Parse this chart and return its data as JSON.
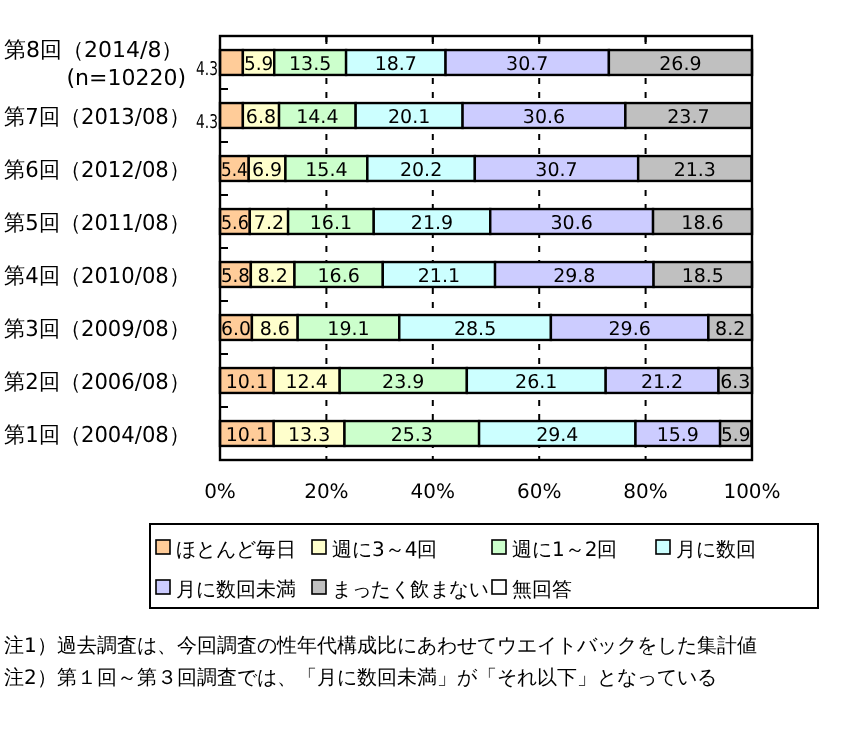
{
  "chart_data": {
    "type": "bar",
    "orientation": "horizontal",
    "stacked": true,
    "categories": [
      "第8回（2014/8）\n(n=10220)",
      "第7回（2013/08）",
      "第6回（2012/08）",
      "第5回（2011/08）",
      "第4回（2010/08）",
      "第3回（2009/08）",
      "第2回（2006/08）",
      "第1回（2004/08）"
    ],
    "series": [
      {
        "name": "ほとんど毎日",
        "color": "#ffcc99",
        "values": [
          4.3,
          4.3,
          5.4,
          5.6,
          5.8,
          6.0,
          10.1,
          10.1
        ],
        "value_labels": [
          "4.3",
          "4.3",
          "5.4",
          "5.6",
          "5.8",
          "6.0",
          "10.1",
          "10.1"
        ]
      },
      {
        "name": "週に3～4回",
        "color": "#ffffcc",
        "values": [
          5.9,
          6.8,
          6.9,
          7.2,
          8.2,
          8.6,
          12.4,
          13.3
        ],
        "value_labels": [
          "5.9",
          "6.8",
          "6.9",
          "7.2",
          "8.2",
          "8.6",
          "12.4",
          "13.3"
        ]
      },
      {
        "name": "週に1～2回",
        "color": "#ccffcc",
        "values": [
          13.5,
          14.4,
          15.4,
          16.1,
          16.6,
          19.1,
          23.9,
          25.3
        ],
        "value_labels": [
          "13.5",
          "14.4",
          "15.4",
          "16.1",
          "16.6",
          "19.1",
          "23.9",
          "25.3"
        ]
      },
      {
        "name": "月に数回",
        "color": "#ccffff",
        "values": [
          18.7,
          20.1,
          20.2,
          21.9,
          21.1,
          28.5,
          26.1,
          29.4
        ],
        "value_labels": [
          "18.7",
          "20.1",
          "20.2",
          "21.9",
          "21.1",
          "28.5",
          "26.1",
          "29.4"
        ]
      },
      {
        "name": "月に数回未満",
        "color": "#ccccff",
        "values": [
          30.7,
          30.6,
          30.7,
          30.6,
          29.8,
          29.6,
          21.2,
          15.9
        ],
        "value_labels": [
          "30.7",
          "30.6",
          "30.7",
          "30.6",
          "29.8",
          "29.6",
          "21.2",
          "15.9"
        ]
      },
      {
        "name": "まったく飲まない",
        "color": "#c0c0c0",
        "values": [
          26.9,
          23.7,
          21.3,
          18.6,
          18.5,
          8.2,
          6.3,
          5.9
        ],
        "value_labels": [
          "26.9",
          "23.7",
          "21.3",
          "18.6",
          "18.5",
          "8.2",
          "6.3",
          "5.9"
        ]
      },
      {
        "name": "無回答",
        "color": "#ffffff",
        "values": [
          null,
          null,
          null,
          null,
          null,
          null,
          null,
          null
        ]
      }
    ],
    "xlim": [
      0,
      100
    ],
    "xticks": [
      {
        "value": 0,
        "label": "0%"
      },
      {
        "value": 20,
        "label": "20%"
      },
      {
        "value": 40,
        "label": "40%"
      },
      {
        "value": 60,
        "label": "60%"
      },
      {
        "value": 80,
        "label": "80%"
      },
      {
        "value": 100,
        "label": "100%"
      }
    ],
    "grid": "x",
    "line_style": "dashed",
    "legend": "bottom",
    "annotations": [
      "注1）過去調査は、今回調査の性年代構成比にあわせてウエイトバックをした集計値",
      "注2）第１回～第３回調査では、「月に数回未満」が「それ以下」となっている"
    ]
  }
}
